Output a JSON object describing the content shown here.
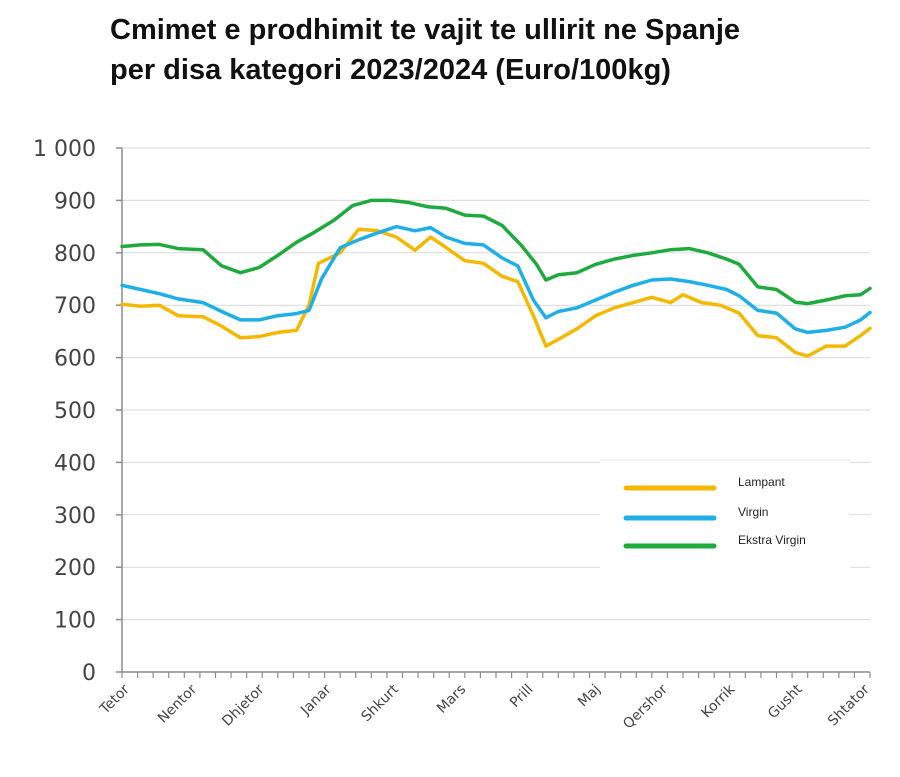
{
  "chart_data": {
    "type": "line",
    "title_lines": [
      "Cmimet e prodhimit te vajit te ullirit ne Spanje",
      "per disa kategori 2023/2024 (Euro/100kg)"
    ],
    "xlabel": "",
    "ylabel": "",
    "ylim": [
      0,
      1000
    ],
    "yticks": [
      0,
      100,
      200,
      300,
      400,
      500,
      600,
      700,
      800,
      900,
      1000
    ],
    "ytick_labels": [
      "0",
      "100",
      "200",
      "300",
      "400",
      "500",
      "600",
      "700",
      "800",
      "900",
      "1 000"
    ],
    "x_range": [
      0,
      12
    ],
    "x_tick_labels": [
      "Tetor",
      "Nentor",
      "Dhjetor",
      "Janar",
      "Shkurt",
      "Mars",
      "Prill",
      "Maj",
      "Qershor",
      "Korrik",
      "Gusht",
      "Shtator"
    ],
    "grid": true,
    "legend_position": "right-middle",
    "series": [
      {
        "name": "Lampant",
        "color": "#F5B800",
        "points": [
          [
            0,
            702
          ],
          [
            0.3,
            698
          ],
          [
            0.6,
            700
          ],
          [
            0.9,
            680
          ],
          [
            1.3,
            678
          ],
          [
            1.6,
            660
          ],
          [
            1.9,
            638
          ],
          [
            2.2,
            640
          ],
          [
            2.5,
            648
          ],
          [
            2.8,
            652
          ],
          [
            3.0,
            700
          ],
          [
            3.15,
            780
          ],
          [
            3.5,
            800
          ],
          [
            3.8,
            845
          ],
          [
            4.1,
            842
          ],
          [
            4.4,
            830
          ],
          [
            4.7,
            805
          ],
          [
            4.95,
            830
          ],
          [
            5.2,
            810
          ],
          [
            5.5,
            785
          ],
          [
            5.8,
            780
          ],
          [
            6.1,
            755
          ],
          [
            6.35,
            745
          ],
          [
            6.6,
            680
          ],
          [
            6.8,
            622
          ],
          [
            7.0,
            635
          ],
          [
            7.3,
            655
          ],
          [
            7.6,
            680
          ],
          [
            7.9,
            695
          ],
          [
            8.2,
            705
          ],
          [
            8.5,
            715
          ],
          [
            8.8,
            705
          ],
          [
            9.0,
            720
          ],
          [
            9.3,
            705
          ],
          [
            9.6,
            700
          ],
          [
            9.9,
            685
          ],
          [
            10.2,
            642
          ],
          [
            10.5,
            638
          ],
          [
            10.8,
            610
          ],
          [
            11.0,
            603
          ],
          [
            11.3,
            622
          ],
          [
            11.6,
            622
          ],
          [
            11.85,
            642
          ],
          [
            12.0,
            656
          ]
        ]
      },
      {
        "name": "Virgin",
        "color": "#1EAEE8",
        "points": [
          [
            0,
            738
          ],
          [
            0.3,
            730
          ],
          [
            0.6,
            722
          ],
          [
            0.9,
            712
          ],
          [
            1.3,
            705
          ],
          [
            1.6,
            688
          ],
          [
            1.9,
            672
          ],
          [
            2.2,
            672
          ],
          [
            2.5,
            680
          ],
          [
            2.8,
            684
          ],
          [
            3.0,
            690
          ],
          [
            3.2,
            750
          ],
          [
            3.5,
            810
          ],
          [
            3.8,
            825
          ],
          [
            4.1,
            838
          ],
          [
            4.4,
            850
          ],
          [
            4.7,
            842
          ],
          [
            4.95,
            848
          ],
          [
            5.2,
            830
          ],
          [
            5.5,
            818
          ],
          [
            5.8,
            815
          ],
          [
            6.1,
            790
          ],
          [
            6.35,
            775
          ],
          [
            6.6,
            710
          ],
          [
            6.8,
            676
          ],
          [
            7.0,
            688
          ],
          [
            7.3,
            695
          ],
          [
            7.6,
            710
          ],
          [
            7.9,
            725
          ],
          [
            8.2,
            738
          ],
          [
            8.5,
            748
          ],
          [
            8.8,
            750
          ],
          [
            9.1,
            745
          ],
          [
            9.4,
            738
          ],
          [
            9.7,
            730
          ],
          [
            9.9,
            718
          ],
          [
            10.2,
            690
          ],
          [
            10.5,
            685
          ],
          [
            10.8,
            655
          ],
          [
            11.0,
            648
          ],
          [
            11.3,
            652
          ],
          [
            11.6,
            658
          ],
          [
            11.85,
            672
          ],
          [
            12.0,
            686
          ]
        ]
      },
      {
        "name": "Ekstra Virgin",
        "color": "#1EAA3C",
        "points": [
          [
            0,
            812
          ],
          [
            0.3,
            815
          ],
          [
            0.6,
            816
          ],
          [
            0.9,
            808
          ],
          [
            1.3,
            806
          ],
          [
            1.6,
            775
          ],
          [
            1.9,
            762
          ],
          [
            2.2,
            772
          ],
          [
            2.5,
            795
          ],
          [
            2.8,
            820
          ],
          [
            3.1,
            840
          ],
          [
            3.4,
            862
          ],
          [
            3.7,
            890
          ],
          [
            4.0,
            900
          ],
          [
            4.3,
            900
          ],
          [
            4.6,
            896
          ],
          [
            4.9,
            888
          ],
          [
            5.2,
            885
          ],
          [
            5.5,
            872
          ],
          [
            5.8,
            870
          ],
          [
            6.1,
            852
          ],
          [
            6.4,
            815
          ],
          [
            6.65,
            778
          ],
          [
            6.8,
            748
          ],
          [
            7.0,
            758
          ],
          [
            7.3,
            762
          ],
          [
            7.6,
            778
          ],
          [
            7.9,
            788
          ],
          [
            8.2,
            795
          ],
          [
            8.5,
            800
          ],
          [
            8.8,
            806
          ],
          [
            9.1,
            808
          ],
          [
            9.4,
            800
          ],
          [
            9.7,
            788
          ],
          [
            9.9,
            778
          ],
          [
            10.2,
            735
          ],
          [
            10.5,
            730
          ],
          [
            10.8,
            706
          ],
          [
            11.0,
            703
          ],
          [
            11.3,
            710
          ],
          [
            11.6,
            718
          ],
          [
            11.85,
            720
          ],
          [
            12.0,
            732
          ]
        ]
      }
    ]
  }
}
